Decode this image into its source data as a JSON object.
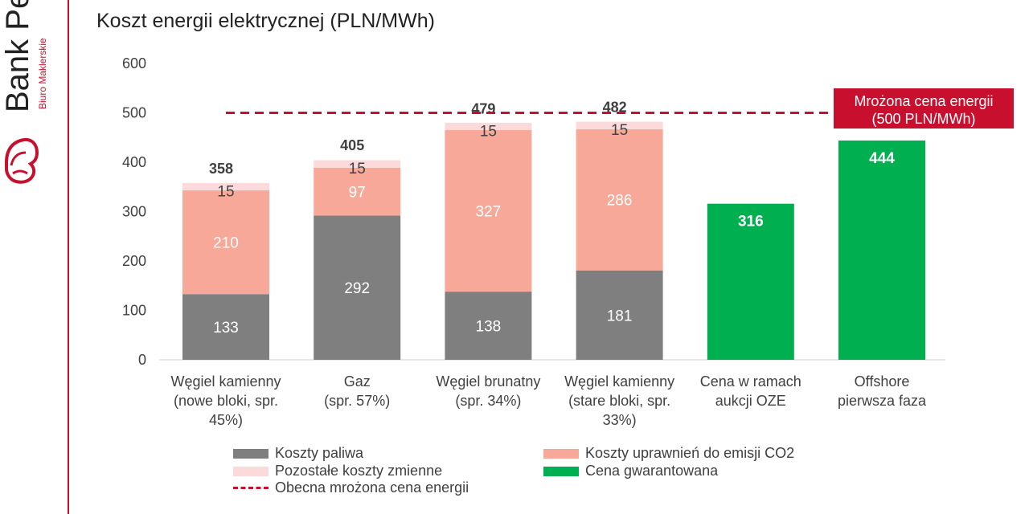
{
  "brand": {
    "name": "Bank Pe",
    "subtitle": "Biuro Maklerskie",
    "accent_color": "#c8102e"
  },
  "chart_data": {
    "type": "bar",
    "stacked": true,
    "title": "Koszt energii elektrycznej (PLN/MWh)",
    "xlabel": "",
    "ylabel": "",
    "ylim": [
      0,
      600
    ],
    "yticks": [
      0,
      100,
      200,
      300,
      400,
      500,
      600
    ],
    "grid": false,
    "legend_position": "bottom",
    "categories": [
      [
        "Węgiel kamienny",
        "(nowe bloki, spr.",
        "45%)"
      ],
      [
        "Gaz",
        "(spr. 57%)"
      ],
      [
        "Węgiel brunatny",
        "(spr. 34%)"
      ],
      [
        "Węgiel kamienny",
        "(stare bloki, spr.",
        "33%)"
      ],
      [
        "Cena w ramach",
        "aukcji OZE"
      ],
      [
        "Offshore",
        "pierwsza faza"
      ]
    ],
    "series": [
      {
        "name": "Koszty paliwa",
        "color": "#7f7f7f",
        "label_color": "#ffffff",
        "values": [
          133,
          292,
          138,
          181,
          null,
          null
        ]
      },
      {
        "name": "Koszty uprawnień do emisji CO2",
        "color": "#f8a898",
        "label_color": "#ffffff",
        "values": [
          210,
          97,
          327,
          286,
          null,
          null
        ]
      },
      {
        "name": "Pozostałe koszty zmienne",
        "color": "#fadada",
        "label_color": "#404040",
        "values": [
          15,
          15,
          15,
          15,
          null,
          null
        ]
      },
      {
        "name": "Cena gwarantowana",
        "color": "#00b050",
        "label_color": "#ffffff",
        "values": [
          null,
          null,
          null,
          null,
          316,
          444
        ]
      }
    ],
    "totals": [
      358,
      405,
      479,
      482,
      null,
      null
    ],
    "reference_line": {
      "name": "Obecna mrożona cena energii",
      "value": 500,
      "color": "#c8102e",
      "style": "dashed",
      "callout": [
        "Mrożona cena energii",
        "(500 PLN/MWh)"
      ]
    }
  }
}
